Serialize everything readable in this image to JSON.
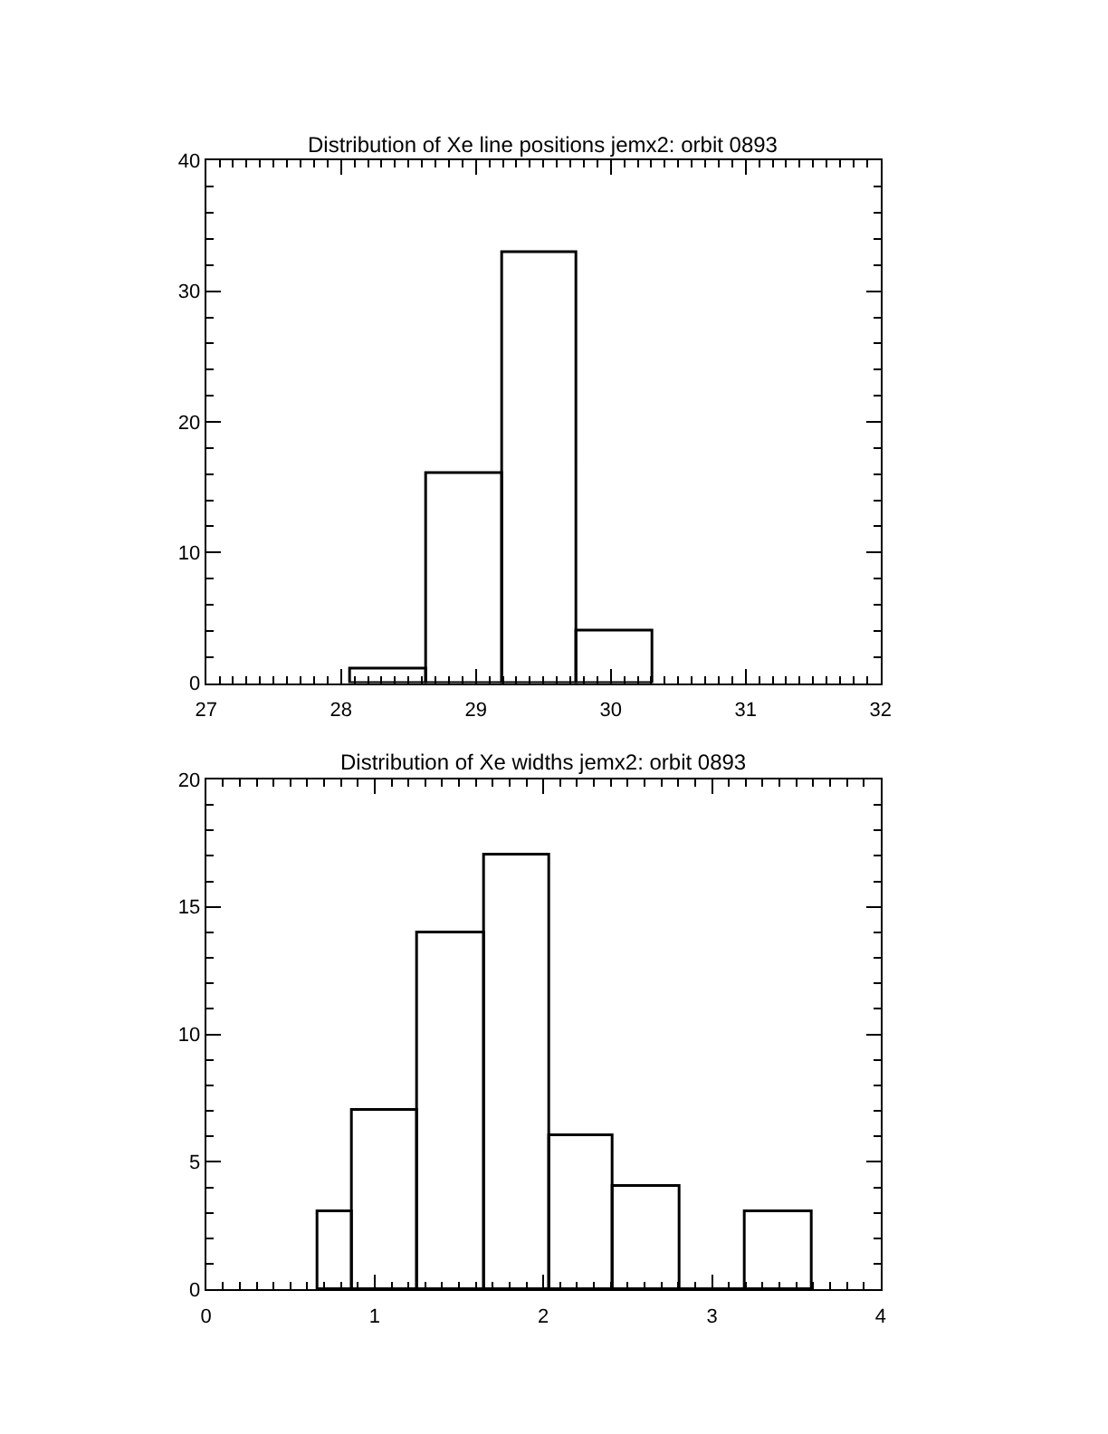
{
  "chart_data": [
    {
      "type": "histogram",
      "title": "Distribution of Xe line positions jemx2: orbit 0893",
      "color": "#000000",
      "bins": [
        28.07,
        28.64,
        29.2,
        29.75,
        30.31
      ],
      "values": [
        1,
        16,
        33,
        4
      ],
      "xlim": [
        27,
        32
      ],
      "xticks": [
        27,
        28,
        29,
        30,
        31,
        32
      ],
      "ylim": [
        0,
        40
      ],
      "yticks": [
        0,
        10,
        20,
        30,
        40
      ]
    },
    {
      "type": "histogram",
      "title": "Distribution of Xe widths jemx2: orbit 0893",
      "color": "#000000",
      "bins": [
        0.67,
        0.87,
        1.26,
        1.65,
        2.04,
        2.42,
        2.81,
        3.2,
        3.6
      ],
      "values": [
        3,
        7,
        14,
        17,
        6,
        4,
        0,
        3
      ],
      "xlim": [
        0,
        4
      ],
      "xticks": [
        0,
        1,
        2,
        3,
        4
      ],
      "ylim": [
        0,
        20
      ],
      "yticks": [
        0,
        5,
        10,
        15,
        20
      ]
    }
  ]
}
